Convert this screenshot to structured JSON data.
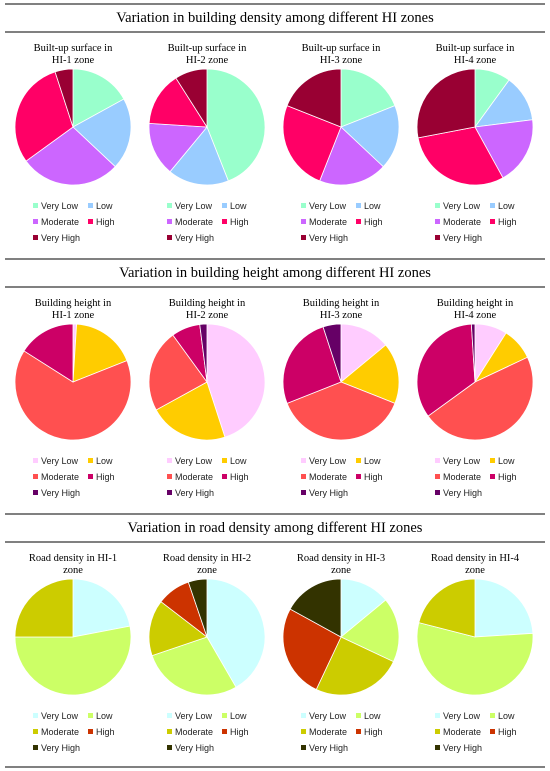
{
  "sections": [
    {
      "title": "Variation in building density among different HI zones",
      "legend": [
        "Very Low",
        "Low",
        "Moderate",
        "High",
        "Very High"
      ],
      "colors": [
        "#99ffcc",
        "#99ccff",
        "#cc66ff",
        "#ff0066",
        "#990033"
      ],
      "charts": [
        {
          "title": [
            "Built-up surface in",
            "HI-1 zone"
          ],
          "values": [
            0.17,
            0.2,
            0.28,
            0.3,
            0.05
          ]
        },
        {
          "title": [
            "Built-up surface in",
            "HI-2 zone"
          ],
          "values": [
            0.44,
            0.17,
            0.15,
            0.15,
            0.09
          ]
        },
        {
          "title": [
            "Built-up surface in",
            "HI-3 zone"
          ],
          "values": [
            0.19,
            0.18,
            0.19,
            0.25,
            0.19
          ]
        },
        {
          "title": [
            "Built-up surface in",
            "HI-4 zone"
          ],
          "values": [
            0.1,
            0.13,
            0.19,
            0.3,
            0.28
          ]
        }
      ]
    },
    {
      "title": "Variation in building height among different HI zones",
      "legend": [
        "Very Low",
        "Low",
        "Moderate",
        "High",
        "Very High"
      ],
      "colors": [
        "#ffccff",
        "#ffcc00",
        "#ff5050",
        "#cc0066",
        "#660066"
      ],
      "charts": [
        {
          "title": [
            "Building height in",
            "HI-1 zone"
          ],
          "values": [
            0.01,
            0.18,
            0.65,
            0.16,
            0.0
          ]
        },
        {
          "title": [
            "Building height in",
            "HI-2 zone"
          ],
          "values": [
            0.45,
            0.22,
            0.23,
            0.08,
            0.02
          ]
        },
        {
          "title": [
            "Building height in",
            "HI-3 zone"
          ],
          "values": [
            0.14,
            0.17,
            0.38,
            0.26,
            0.05
          ]
        },
        {
          "title": [
            "Building height in",
            "HI-4 zone"
          ],
          "values": [
            0.09,
            0.09,
            0.47,
            0.34,
            0.01
          ]
        }
      ]
    },
    {
      "title": "Variation in road density among different HI zones",
      "legend": [
        "Very Low",
        "Low",
        "Moderate",
        "High",
        "Very High"
      ],
      "colors": [
        "#ccffff",
        "#ccff66",
        "#cccc00",
        "#cc3300",
        "#333300"
      ],
      "charts": [
        {
          "title": [
            "Road density in HI-1",
            "zone"
          ],
          "values": [
            0.22,
            0.53,
            0.25,
            0.0,
            0.0
          ]
        },
        {
          "title": [
            "Road density in HI-2",
            "zone"
          ],
          "values": [
            0.4,
            0.27,
            0.15,
            0.09,
            0.05
          ]
        },
        {
          "title": [
            "Road density in HI-3",
            "zone"
          ],
          "values": [
            0.14,
            0.18,
            0.25,
            0.26,
            0.17
          ]
        },
        {
          "title": [
            "Road density in HI-4",
            "zone"
          ],
          "values": [
            0.24,
            0.55,
            0.21,
            0.0,
            0.0
          ]
        }
      ]
    }
  ],
  "chart_data": [
    {
      "type": "pie",
      "title": "Built-up surface in HI-1 zone",
      "labels": [
        "Very Low",
        "Low",
        "Moderate",
        "High",
        "Very High"
      ],
      "values": [
        0.17,
        0.2,
        0.28,
        0.3,
        0.05
      ]
    },
    {
      "type": "pie",
      "title": "Built-up surface in HI-2 zone",
      "labels": [
        "Very Low",
        "Low",
        "Moderate",
        "High",
        "Very High"
      ],
      "values": [
        0.44,
        0.17,
        0.15,
        0.15,
        0.09
      ]
    },
    {
      "type": "pie",
      "title": "Built-up surface in HI-3 zone",
      "labels": [
        "Very Low",
        "Low",
        "Moderate",
        "High",
        "Very High"
      ],
      "values": [
        0.19,
        0.18,
        0.19,
        0.25,
        0.19
      ]
    },
    {
      "type": "pie",
      "title": "Built-up surface in HI-4 zone",
      "labels": [
        "Very Low",
        "Low",
        "Moderate",
        "High",
        "Very High"
      ],
      "values": [
        0.1,
        0.13,
        0.19,
        0.3,
        0.28
      ]
    },
    {
      "type": "pie",
      "title": "Building height in HI-1 zone",
      "labels": [
        "Very Low",
        "Low",
        "Moderate",
        "High",
        "Very High"
      ],
      "values": [
        0.01,
        0.18,
        0.65,
        0.16,
        0.0
      ]
    },
    {
      "type": "pie",
      "title": "Building height in HI-2 zone",
      "labels": [
        "Very Low",
        "Low",
        "Moderate",
        "High",
        "Very High"
      ],
      "values": [
        0.45,
        0.22,
        0.23,
        0.08,
        0.02
      ]
    },
    {
      "type": "pie",
      "title": "Building height in HI-3 zone",
      "labels": [
        "Very Low",
        "Low",
        "Moderate",
        "High",
        "Very High"
      ],
      "values": [
        0.14,
        0.17,
        0.38,
        0.26,
        0.05
      ]
    },
    {
      "type": "pie",
      "title": "Building height in HI-4 zone",
      "labels": [
        "Very Low",
        "Low",
        "Moderate",
        "High",
        "Very High"
      ],
      "values": [
        0.09,
        0.09,
        0.47,
        0.34,
        0.01
      ]
    },
    {
      "type": "pie",
      "title": "Road density in HI-1 zone",
      "labels": [
        "Very Low",
        "Low",
        "Moderate",
        "High",
        "Very High"
      ],
      "values": [
        0.22,
        0.53,
        0.25,
        0.0,
        0.0
      ]
    },
    {
      "type": "pie",
      "title": "Road density in HI-2 zone",
      "labels": [
        "Very Low",
        "Low",
        "Moderate",
        "High",
        "Very High"
      ],
      "values": [
        0.4,
        0.27,
        0.15,
        0.09,
        0.05
      ]
    },
    {
      "type": "pie",
      "title": "Road density in HI-3 zone",
      "labels": [
        "Very Low",
        "Low",
        "Moderate",
        "High",
        "Very High"
      ],
      "values": [
        0.14,
        0.18,
        0.25,
        0.26,
        0.17
      ]
    },
    {
      "type": "pie",
      "title": "Road density in HI-4 zone",
      "labels": [
        "Very Low",
        "Low",
        "Moderate",
        "High",
        "Very High"
      ],
      "values": [
        0.24,
        0.55,
        0.21,
        0.0,
        0.0
      ]
    }
  ]
}
